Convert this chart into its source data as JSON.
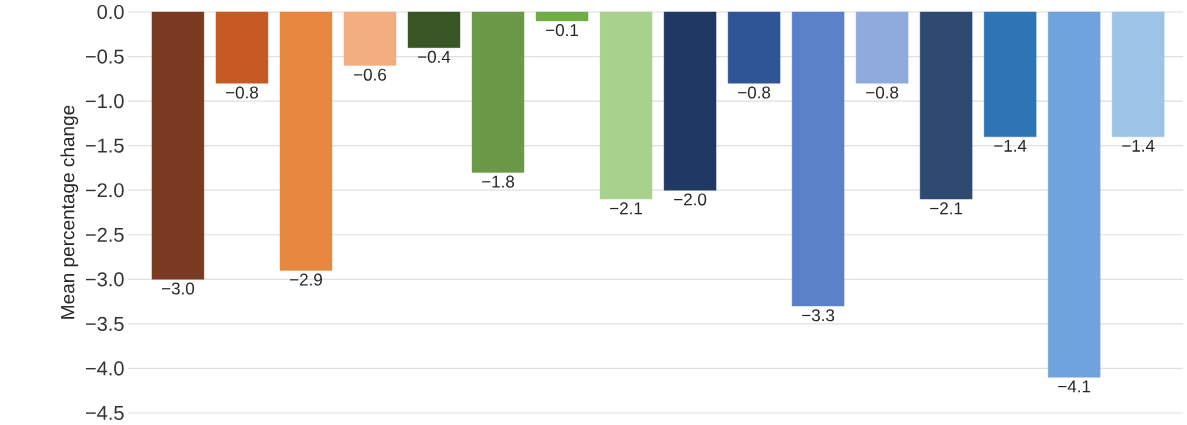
{
  "chart_data": {
    "type": "bar",
    "ylabel": "Mean percentage change",
    "categories": [
      null,
      null,
      null,
      null,
      null,
      null,
      null,
      null,
      null,
      null,
      null,
      null,
      null,
      null,
      null,
      null
    ],
    "values": [
      -3.0,
      -0.8,
      -2.9,
      -0.6,
      -0.4,
      -1.8,
      -0.1,
      -2.1,
      -2.0,
      -0.8,
      -3.3,
      -0.8,
      -2.1,
      -1.4,
      -4.1,
      -1.4
    ],
    "value_labels": [
      "−3.0",
      "−0.8",
      "−2.9",
      "−0.6",
      "−0.4",
      "−1.8",
      "−0.1",
      "−2.1",
      "−2.0",
      "−0.8",
      "−3.3",
      "−0.8",
      "−2.1",
      "−1.4",
      "−4.1",
      "−1.4"
    ],
    "colors": [
      "#7a3b22",
      "#c55a24",
      "#e8873f",
      "#f2ad80",
      "#375623",
      "#6a9a48",
      "#70ad47",
      "#a9d18e",
      "#203864",
      "#2f5597",
      "#5b82c8",
      "#8faadc",
      "#2e4a70",
      "#2e75b6",
      "#6fa3dc",
      "#9dc3e6"
    ],
    "ylim": [
      -4.5,
      0
    ],
    "yticks": [
      {
        "value": 0,
        "label": "0.0"
      },
      {
        "value": -0.5,
        "label": "−0.5"
      },
      {
        "value": -1.0,
        "label": "−1.0"
      },
      {
        "value": -1.5,
        "label": "−1.5"
      },
      {
        "value": -2.0,
        "label": "−2.0"
      },
      {
        "value": -2.5,
        "label": "−2.5"
      },
      {
        "value": -3.0,
        "label": "−3.0"
      },
      {
        "value": -3.5,
        "label": "−3.5"
      },
      {
        "value": -4.0,
        "label": "−4.0"
      },
      {
        "value": -4.5,
        "label": "−4.5"
      }
    ],
    "grid": "y"
  }
}
